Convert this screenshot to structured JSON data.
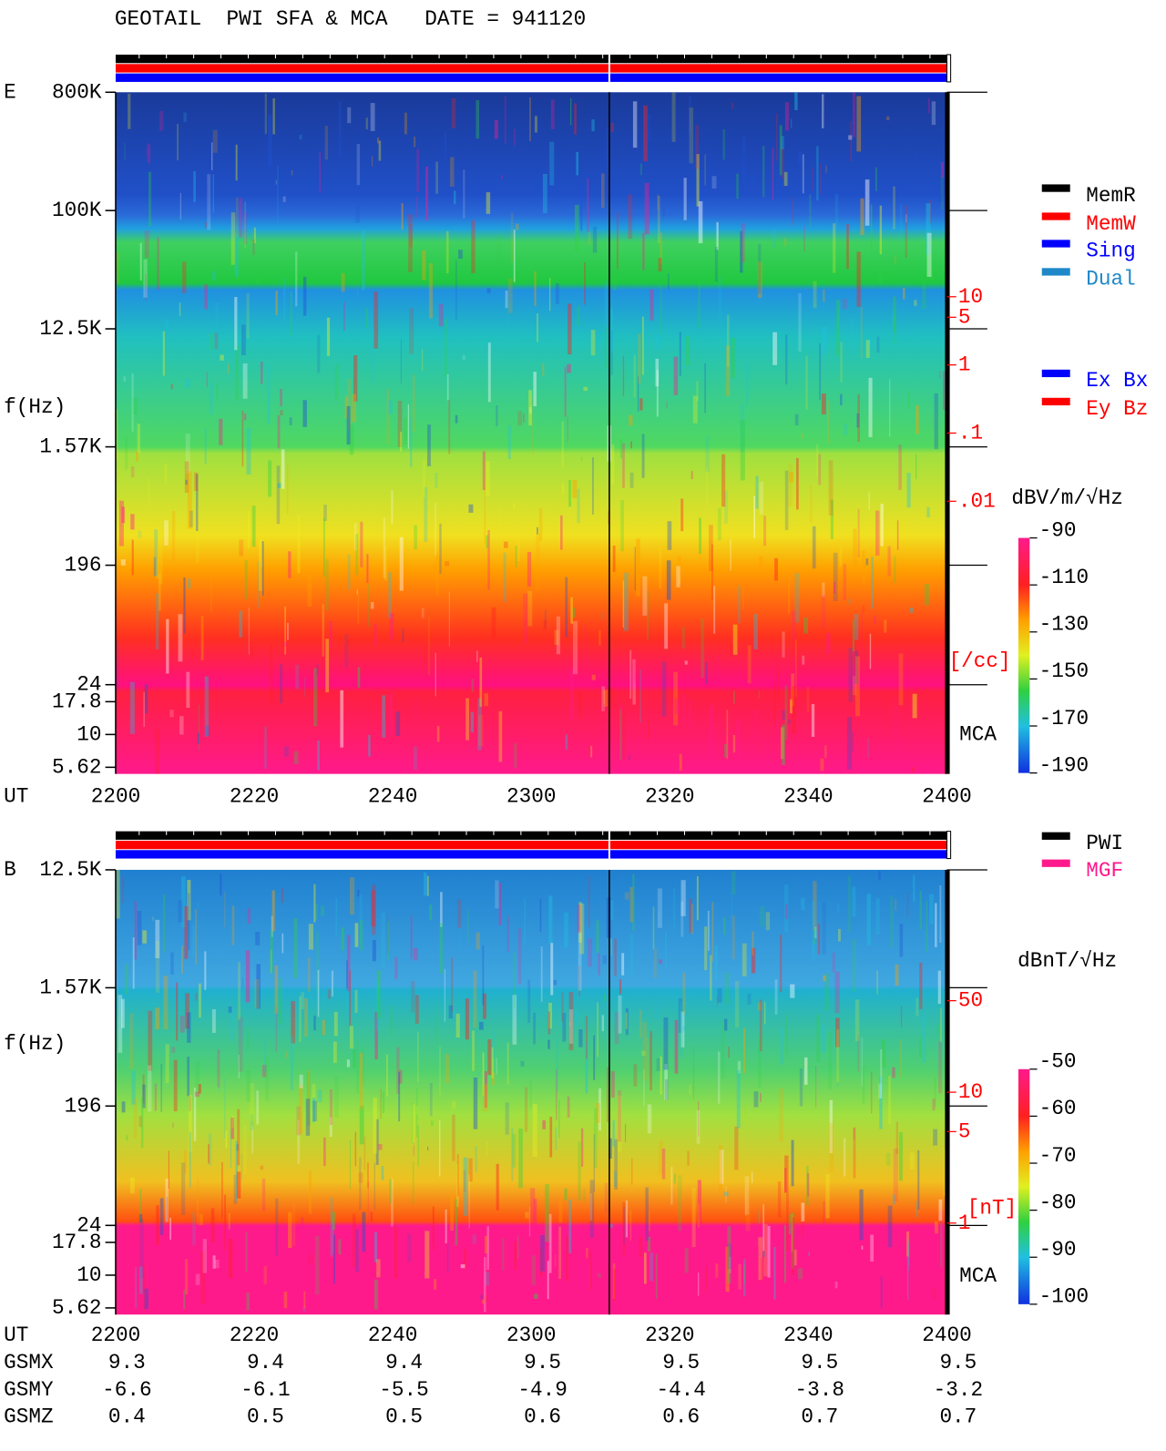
{
  "header": {
    "title": "GEOTAIL  PWI SFA & MCA   DATE = 941120"
  },
  "chart_data": [
    {
      "type": "spectrogram",
      "label": "E",
      "ylabel": "f(Hz)",
      "xlabel": "UT",
      "yscale": "log",
      "ylim": [
        5,
        800000
      ],
      "yticks": [
        {
          "value": 800000,
          "label": "800K"
        },
        {
          "value": 100000,
          "label": "100K"
        },
        {
          "value": 12500,
          "label": "12.5K"
        },
        {
          "value": 1570,
          "label": "1.57K"
        },
        196,
        24,
        17.8,
        10,
        5.62
      ],
      "x": [
        "2200",
        "2220",
        "2240",
        "2300",
        "2320",
        "2340",
        "2400"
      ],
      "y2scale": "log",
      "y2lim": [
        1e-06,
        10000
      ],
      "y2ticks": [
        10,
        5,
        1,
        {
          "value": 0.1,
          "label": ".1"
        },
        {
          "value": 0.01,
          "label": ".01"
        }
      ],
      "y2label": "[/cc]",
      "annotation": "MCA",
      "colorbar": {
        "label": "dBV/m/√Hz",
        "lim": [
          -190,
          -90
        ],
        "ticks": [
          -90,
          -110,
          -130,
          -150,
          -170,
          -190
        ]
      },
      "legend": [
        {
          "name": "MemR",
          "color": "#000000"
        },
        {
          "name": "MemW",
          "color": "#ff0000"
        },
        {
          "name": "Sing",
          "color": "#0000ff"
        },
        {
          "name": "Dual",
          "color": "#1e88c8"
        }
      ],
      "legend2": [
        {
          "name": "Ex Bx",
          "color": "#0000ff"
        },
        {
          "name": "Ey Bz",
          "color": "#ff0000"
        }
      ]
    },
    {
      "type": "spectrogram",
      "label": "B",
      "ylabel": "f(Hz)",
      "xlabel": "UT",
      "yscale": "log",
      "ylim": [
        5,
        12500
      ],
      "yticks": [
        {
          "value": 12500,
          "label": "12.5K"
        },
        {
          "value": 1570,
          "label": "1.57K"
        },
        196,
        24,
        17.8,
        10,
        5.62
      ],
      "x": [
        "2200",
        "2220",
        "2240",
        "2300",
        "2320",
        "2340",
        "2400"
      ],
      "y2scale": "log",
      "y2lim": [
        0.2,
        500
      ],
      "y2ticks": [
        50,
        10,
        5,
        1
      ],
      "y2label": "[nT]",
      "annotation": "MCA",
      "colorbar": {
        "label": "dBnT/√Hz",
        "lim": [
          -100,
          -50
        ],
        "ticks": [
          -50,
          -60,
          -70,
          -80,
          -90,
          -100
        ]
      },
      "legend": [
        {
          "name": "PWI",
          "color": "#000000"
        },
        {
          "name": "MGF",
          "color": "#ff1a8c"
        }
      ]
    }
  ],
  "orbit": {
    "labels": [
      "GSMX",
      "GSMY",
      "GSMZ"
    ],
    "rows": [
      [
        9.3,
        9.4,
        9.4,
        9.5,
        9.5,
        9.5,
        9.5
      ],
      [
        -6.6,
        -6.1,
        -5.5,
        -4.9,
        -4.4,
        -3.8,
        -3.2
      ],
      [
        0.4,
        0.5,
        0.5,
        0.6,
        0.6,
        0.7,
        0.7
      ]
    ]
  }
}
